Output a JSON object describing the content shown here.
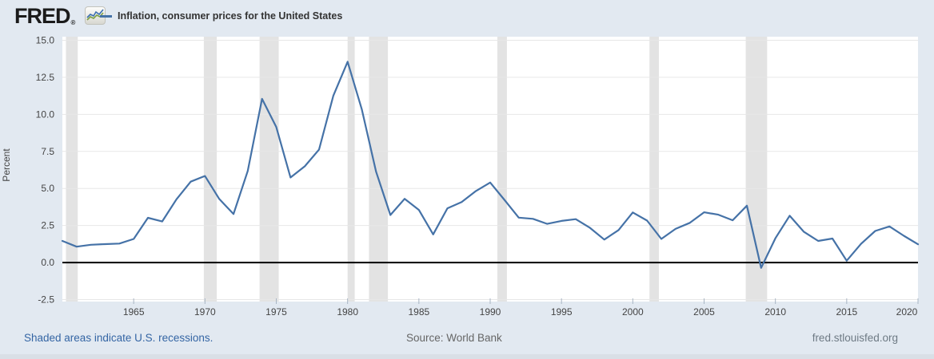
{
  "header": {
    "brand": "FRED",
    "registered_mark": "®",
    "legend_label": "Inflation, consumer prices for the United States"
  },
  "icons": {
    "logo_chart_icon": "line-chart"
  },
  "chart_data": {
    "type": "line",
    "title": "Inflation, consumer prices for the United States",
    "ylabel": "Percent",
    "xlabel": "",
    "series_name": "Inflation, consumer prices for the United States",
    "x": [
      1960,
      1961,
      1962,
      1963,
      1964,
      1965,
      1966,
      1967,
      1968,
      1969,
      1970,
      1971,
      1972,
      1973,
      1974,
      1975,
      1976,
      1977,
      1978,
      1979,
      1980,
      1981,
      1982,
      1983,
      1984,
      1985,
      1986,
      1987,
      1988,
      1989,
      1990,
      1991,
      1992,
      1993,
      1994,
      1995,
      1996,
      1997,
      1998,
      1999,
      2000,
      2001,
      2002,
      2003,
      2004,
      2005,
      2006,
      2007,
      2008,
      2009,
      2010,
      2011,
      2012,
      2013,
      2014,
      2015,
      2016,
      2017,
      2018,
      2019,
      2020
    ],
    "values": [
      1.46,
      1.07,
      1.2,
      1.24,
      1.28,
      1.59,
      3.02,
      2.77,
      4.27,
      5.46,
      5.84,
      4.29,
      3.27,
      6.18,
      11.05,
      9.14,
      5.74,
      6.5,
      7.63,
      11.25,
      13.55,
      10.33,
      6.13,
      3.21,
      4.3,
      3.55,
      1.9,
      3.66,
      4.08,
      4.83,
      5.4,
      4.23,
      3.03,
      2.95,
      2.61,
      2.81,
      2.93,
      2.34,
      1.55,
      2.19,
      3.38,
      2.83,
      1.59,
      2.27,
      2.68,
      3.39,
      3.23,
      2.85,
      3.84,
      -0.36,
      1.64,
      3.16,
      2.07,
      1.46,
      1.62,
      0.12,
      1.26,
      2.13,
      2.44,
      1.81,
      1.23
    ],
    "x_range": [
      1960,
      2020
    ],
    "ylim": [
      -2.5,
      15.0
    ],
    "yticks": [
      -2.5,
      0.0,
      2.5,
      5.0,
      7.5,
      10.0,
      12.5,
      15.0
    ],
    "xticks": [
      1965,
      1970,
      1975,
      1980,
      1985,
      1990,
      1995,
      2000,
      2005,
      2010,
      2015,
      2020
    ],
    "grid": "horizontal gridlines only, no vertical gridlines",
    "legend_position": "top-left header row",
    "line_color": "#4572a7",
    "zero_line_color": "#000000",
    "gridline_color": "#e7e7e7",
    "plot_background_color": "#ffffff",
    "recession_band_color": "#e3e3e3",
    "recession_bands": [
      [
        1960.25,
        1961.08
      ],
      [
        1969.92,
        1970.83
      ],
      [
        1973.83,
        1975.17
      ],
      [
        1980.0,
        1980.5
      ],
      [
        1981.5,
        1982.83
      ],
      [
        1990.5,
        1991.17
      ],
      [
        2001.17,
        2001.83
      ],
      [
        2007.92,
        2009.42
      ]
    ]
  },
  "footer": {
    "note": "Shaded areas indicate U.S. recessions.",
    "source": "Source: World Bank",
    "site": "fred.stlouisfed.org"
  }
}
